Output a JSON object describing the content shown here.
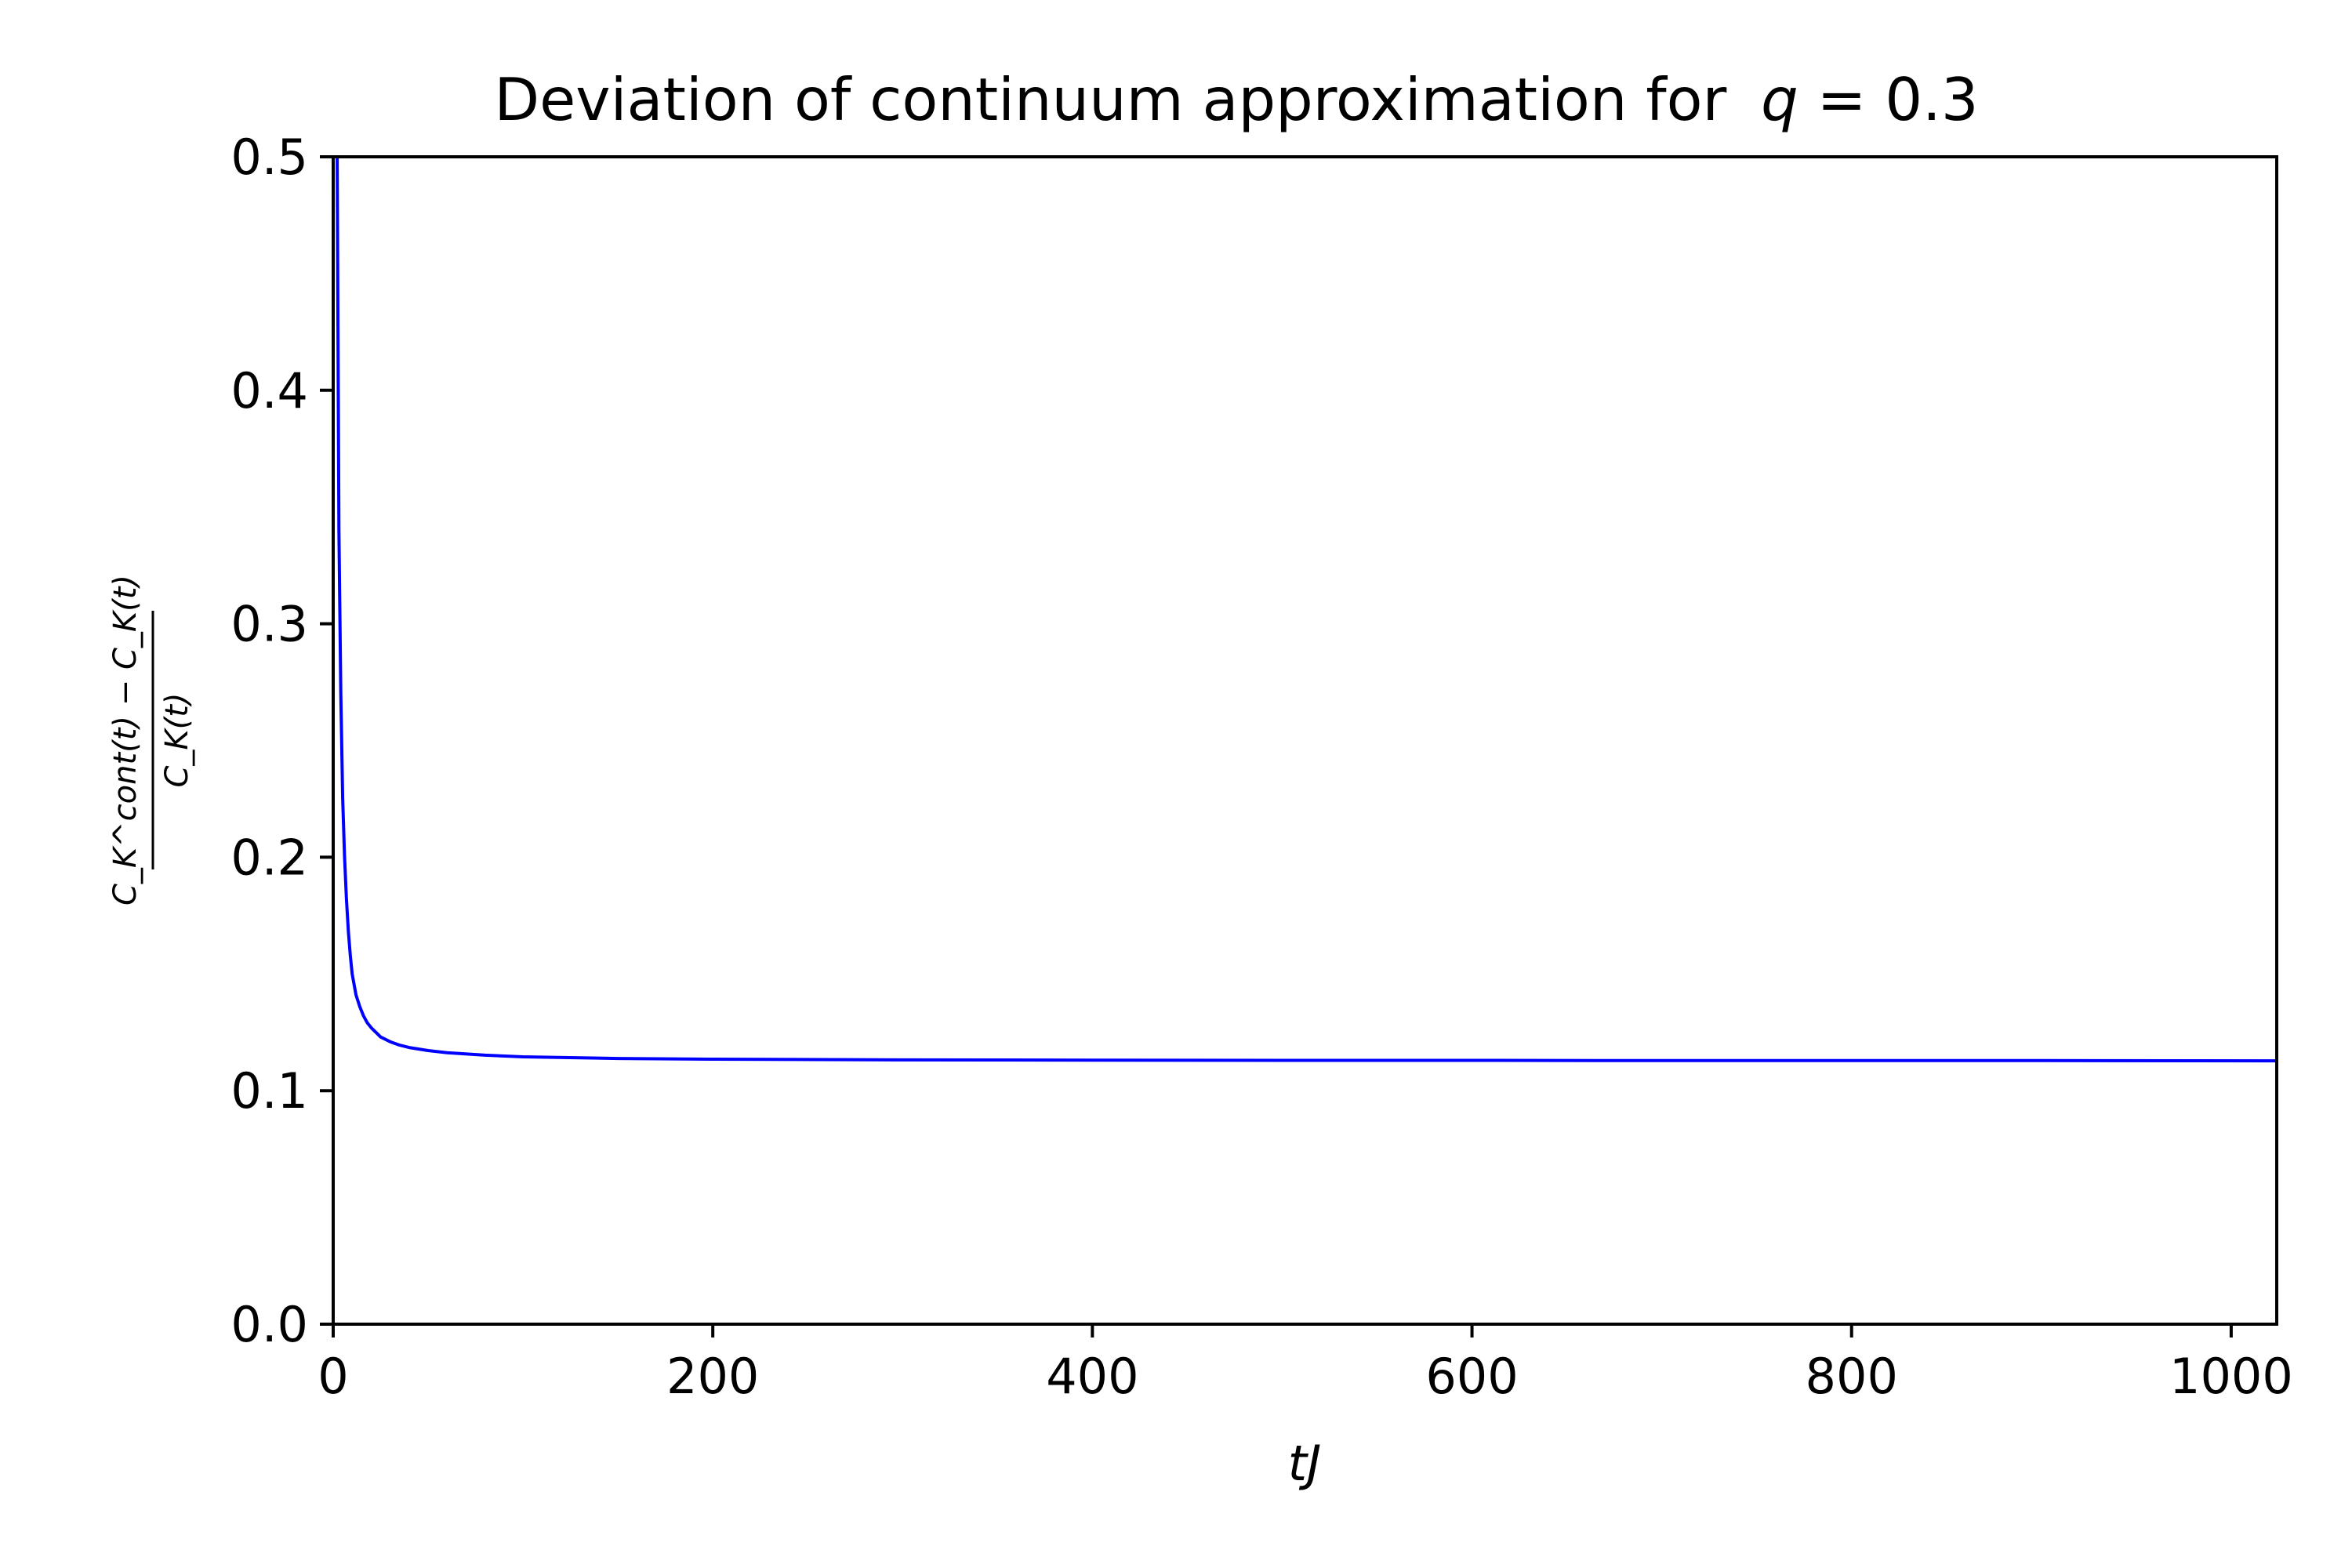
{
  "chart_data": {
    "type": "line",
    "title": "Deviation of continuum approximation for",
    "title_math": {
      "variable": "q",
      "operator": " = ",
      "value": "0.3"
    },
    "xlabel": "tJ",
    "ylabel_parts": {
      "numerator": "C_K^cont(t) − C_K(t)",
      "denominator": "C_K(t)"
    },
    "xlim": [
      0,
      1024
    ],
    "ylim": [
      0.0,
      0.5
    ],
    "x_ticks": [
      {
        "value": 0,
        "label": "0"
      },
      {
        "value": 200,
        "label": "200"
      },
      {
        "value": 400,
        "label": "400"
      },
      {
        "value": 600,
        "label": "600"
      },
      {
        "value": 800,
        "label": "800"
      },
      {
        "value": 1000,
        "label": "1000"
      }
    ],
    "y_ticks": [
      {
        "value": 0.0,
        "label": "0.0"
      },
      {
        "value": 0.1,
        "label": "0.1"
      },
      {
        "value": 0.2,
        "label": "0.2"
      },
      {
        "value": 0.3,
        "label": "0.3"
      },
      {
        "value": 0.4,
        "label": "0.4"
      },
      {
        "value": 0.5,
        "label": "0.5"
      }
    ],
    "grid": false,
    "legend": "none",
    "series": [
      {
        "color": "#0000ff",
        "x": [
          1,
          2,
          3,
          4,
          5,
          6,
          7,
          8,
          9,
          10,
          12,
          14,
          16,
          18,
          20,
          25,
          30,
          35,
          40,
          50,
          60,
          80,
          100,
          150,
          200,
          300,
          400,
          500,
          600,
          700,
          800,
          900,
          1024
        ],
        "y": [
          1.0,
          0.52,
          0.34,
          0.27,
          0.225,
          0.2,
          0.182,
          0.168,
          0.158,
          0.15,
          0.141,
          0.136,
          0.132,
          0.129,
          0.127,
          0.123,
          0.121,
          0.1195,
          0.1185,
          0.1172,
          0.1163,
          0.1152,
          0.1145,
          0.1138,
          0.1135,
          0.1132,
          0.1131,
          0.113,
          0.113,
          0.1129,
          0.1129,
          0.1129,
          0.1128
        ]
      }
    ]
  }
}
